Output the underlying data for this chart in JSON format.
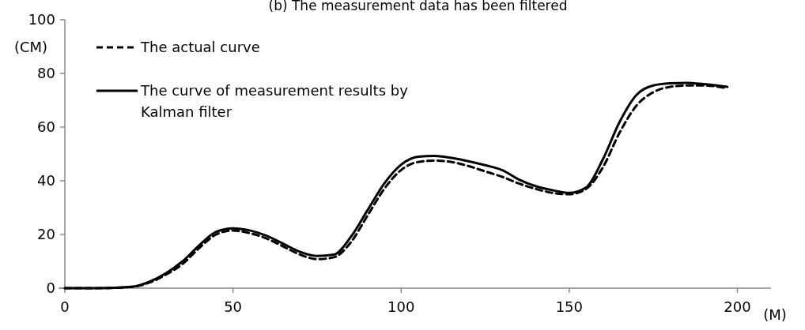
{
  "chart_data": {
    "type": "line",
    "title": "(b)   The measurement data has been filtered",
    "xlabel": "(M)",
    "ylabel": "(CM)",
    "x": [
      0,
      10,
      20,
      25,
      30,
      35,
      40,
      45,
      50,
      55,
      60,
      65,
      70,
      75,
      80,
      85,
      90,
      95,
      100,
      105,
      110,
      115,
      120,
      125,
      130,
      135,
      140,
      145,
      150,
      155,
      160,
      165,
      170,
      175,
      180,
      185,
      190,
      197
    ],
    "series": [
      {
        "name": "The actual curve",
        "color": "#000000",
        "line_style": "dashed",
        "values": [
          0,
          0,
          0.5,
          2,
          5,
          9,
          15,
          20,
          21.5,
          20.5,
          18.5,
          15.5,
          12.5,
          10.8,
          11.5,
          17,
          27,
          37,
          44,
          47,
          47.5,
          47,
          45.5,
          43.5,
          41.5,
          39,
          37,
          35.5,
          35,
          37,
          45,
          58,
          68,
          73,
          75,
          75.5,
          75.5,
          74.5
        ]
      },
      {
        "name": "The curve of measurement results by Kalman filter",
        "color": "#000000",
        "line_style": "solid",
        "values": [
          0,
          0,
          0.5,
          2.3,
          5.5,
          10,
          16,
          21,
          22.3,
          21.5,
          19.5,
          16.5,
          13.5,
          12,
          12.5,
          19,
          29,
          39,
          46,
          49,
          49.3,
          48.5,
          47.3,
          45.8,
          44,
          40.5,
          38,
          36.5,
          35.5,
          37.5,
          48,
          62,
          72,
          75.5,
          76.3,
          76.5,
          76,
          75
        ]
      }
    ],
    "xlim": [
      0,
      210
    ],
    "xticks": [
      0,
      50,
      100,
      150,
      200
    ],
    "ylim": [
      0,
      100
    ],
    "yticks": [
      0,
      20,
      40,
      60,
      80,
      100
    ],
    "grid": false,
    "legend": "top left",
    "marker": "none"
  }
}
